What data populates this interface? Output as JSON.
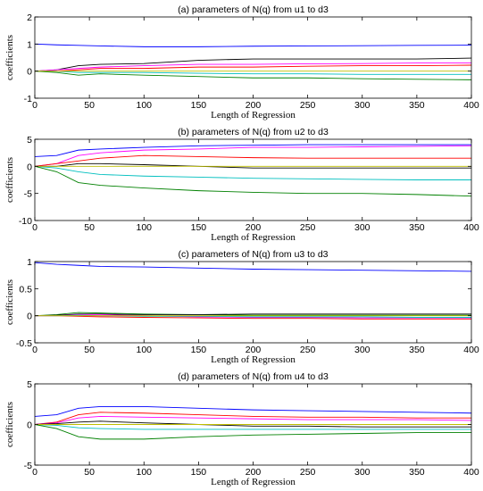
{
  "chart_data": [
    {
      "type": "line",
      "title": "(a) parameters of N(q) from u1 to d3",
      "xlabel": "Length of Regression",
      "ylabel": "coefficients",
      "xlim": [
        0,
        400
      ],
      "ylim": [
        -1,
        2
      ],
      "xticks": [
        0,
        50,
        100,
        150,
        200,
        250,
        300,
        350,
        400
      ],
      "yticks": [
        -1,
        0,
        1,
        2
      ],
      "grid": false,
      "series": [
        {
          "color": "#0000ff",
          "x": [
            0,
            20,
            40,
            60,
            100,
            150,
            200,
            250,
            300,
            350,
            400
          ],
          "values": [
            1.0,
            0.97,
            0.95,
            0.93,
            0.9,
            0.9,
            0.92,
            0.93,
            0.94,
            0.95,
            0.96
          ]
        },
        {
          "color": "#000000",
          "x": [
            0,
            20,
            40,
            60,
            100,
            150,
            200,
            250,
            300,
            350,
            400
          ],
          "values": [
            0.0,
            0.05,
            0.2,
            0.25,
            0.28,
            0.4,
            0.45,
            0.45,
            0.45,
            0.45,
            0.48
          ]
        },
        {
          "color": "#ff00ff",
          "x": [
            0,
            20,
            40,
            60,
            100,
            150,
            200,
            250,
            300,
            350,
            400
          ],
          "values": [
            0.0,
            0.05,
            0.1,
            0.15,
            0.2,
            0.25,
            0.25,
            0.27,
            0.28,
            0.3,
            0.3
          ]
        },
        {
          "color": "#ff0000",
          "x": [
            0,
            20,
            40,
            60,
            100,
            150,
            200,
            250,
            300,
            350,
            400
          ],
          "values": [
            0.0,
            0.0,
            0.05,
            0.1,
            0.1,
            0.15,
            0.15,
            0.18,
            0.2,
            0.2,
            0.22
          ]
        },
        {
          "color": "#00bfbf",
          "x": [
            0,
            20,
            40,
            60,
            100,
            150,
            200,
            250,
            300,
            350,
            400
          ],
          "values": [
            0.0,
            0.0,
            -0.05,
            -0.05,
            -0.05,
            -0.08,
            -0.1,
            -0.1,
            -0.12,
            -0.12,
            -0.12
          ]
        },
        {
          "color": "#008000",
          "x": [
            0,
            20,
            40,
            60,
            100,
            150,
            200,
            250,
            300,
            350,
            400
          ],
          "values": [
            0.0,
            -0.05,
            -0.15,
            -0.1,
            -0.15,
            -0.2,
            -0.25,
            -0.25,
            -0.28,
            -0.3,
            -0.32
          ]
        },
        {
          "color": "#bfbf00",
          "x": [
            0,
            400
          ],
          "values": [
            0.0,
            0.0
          ]
        }
      ]
    },
    {
      "type": "line",
      "title": "(b) parameters of N(q) from u2 to d3",
      "xlabel": "Length of Regression",
      "ylabel": "coefficients",
      "xlim": [
        0,
        400
      ],
      "ylim": [
        -10,
        5
      ],
      "xticks": [
        0,
        50,
        100,
        150,
        200,
        250,
        300,
        350,
        400
      ],
      "yticks": [
        -10,
        -5,
        0,
        5
      ],
      "grid": false,
      "series": [
        {
          "color": "#0000ff",
          "x": [
            0,
            20,
            40,
            60,
            100,
            150,
            200,
            250,
            300,
            350,
            400
          ],
          "values": [
            1.8,
            2.0,
            3.0,
            3.2,
            3.5,
            3.8,
            3.9,
            4.0,
            4.0,
            4.0,
            4.0
          ]
        },
        {
          "color": "#ff00ff",
          "x": [
            0,
            20,
            40,
            60,
            100,
            150,
            200,
            250,
            300,
            350,
            400
          ],
          "values": [
            0.0,
            0.5,
            2.0,
            2.5,
            3.0,
            3.2,
            3.5,
            3.5,
            3.6,
            3.7,
            3.8
          ]
        },
        {
          "color": "#ff0000",
          "x": [
            0,
            20,
            40,
            60,
            100,
            150,
            200,
            250,
            300,
            350,
            400
          ],
          "values": [
            0.0,
            0.5,
            1.0,
            1.5,
            2.0,
            1.8,
            1.6,
            1.5,
            1.5,
            1.5,
            1.5
          ]
        },
        {
          "color": "#000000",
          "x": [
            0,
            20,
            40,
            60,
            100,
            150,
            200,
            250,
            300,
            350,
            400
          ],
          "values": [
            0.0,
            0.0,
            0.5,
            0.5,
            0.3,
            0.0,
            -0.3,
            -0.3,
            -0.3,
            -0.3,
            -0.3
          ]
        },
        {
          "color": "#00bfbf",
          "x": [
            0,
            20,
            40,
            60,
            100,
            150,
            200,
            250,
            300,
            350,
            400
          ],
          "values": [
            0.0,
            -0.3,
            -1.0,
            -1.5,
            -1.8,
            -2.0,
            -2.2,
            -2.3,
            -2.4,
            -2.5,
            -2.5
          ]
        },
        {
          "color": "#008000",
          "x": [
            0,
            20,
            40,
            60,
            100,
            150,
            200,
            250,
            300,
            350,
            400
          ],
          "values": [
            0.0,
            -1.0,
            -3.0,
            -3.5,
            -4.0,
            -4.5,
            -4.8,
            -5.0,
            -5.0,
            -5.2,
            -5.5
          ]
        },
        {
          "color": "#bfbf00",
          "x": [
            0,
            400
          ],
          "values": [
            0.0,
            0.0
          ]
        }
      ]
    },
    {
      "type": "line",
      "title": "(c) parameters of N(q) from u3 to d3",
      "xlabel": "Length of Regression",
      "ylabel": "coefficients",
      "xlim": [
        0,
        400
      ],
      "ylim": [
        -0.5,
        1
      ],
      "xticks": [
        0,
        50,
        100,
        150,
        200,
        250,
        300,
        350,
        400
      ],
      "yticks": [
        -0.5,
        0,
        0.5,
        1
      ],
      "grid": false,
      "series": [
        {
          "color": "#0000ff",
          "x": [
            0,
            20,
            40,
            60,
            100,
            150,
            200,
            250,
            300,
            350,
            400
          ],
          "values": [
            0.98,
            0.95,
            0.93,
            0.91,
            0.9,
            0.88,
            0.86,
            0.85,
            0.84,
            0.83,
            0.82
          ]
        },
        {
          "color": "#008000",
          "x": [
            0,
            20,
            40,
            60,
            100,
            150,
            200,
            250,
            300,
            350,
            400
          ],
          "values": [
            0.0,
            0.02,
            0.06,
            0.05,
            0.03,
            0.02,
            0.01,
            0.01,
            0.01,
            0.01,
            0.01
          ]
        },
        {
          "color": "#000000",
          "x": [
            0,
            20,
            40,
            60,
            100,
            150,
            200,
            250,
            300,
            350,
            400
          ],
          "values": [
            0.0,
            0.01,
            0.03,
            0.03,
            0.02,
            0.02,
            0.03,
            0.03,
            0.03,
            0.03,
            0.03
          ]
        },
        {
          "color": "#ff00ff",
          "x": [
            0,
            20,
            40,
            60,
            100,
            150,
            200,
            250,
            300,
            350,
            400
          ],
          "values": [
            0.0,
            0.0,
            0.02,
            0.02,
            0.0,
            -0.02,
            -0.03,
            -0.03,
            -0.04,
            -0.04,
            -0.04
          ]
        },
        {
          "color": "#ff0000",
          "x": [
            0,
            20,
            40,
            60,
            100,
            150,
            200,
            250,
            300,
            350,
            400
          ],
          "values": [
            0.0,
            0.0,
            -0.01,
            -0.02,
            -0.03,
            -0.04,
            -0.05,
            -0.05,
            -0.06,
            -0.06,
            -0.06
          ]
        },
        {
          "color": "#00bfbf",
          "x": [
            0,
            20,
            40,
            60,
            100,
            150,
            200,
            250,
            300,
            350,
            400
          ],
          "values": [
            0.0,
            0.0,
            0.01,
            0.0,
            -0.01,
            -0.01,
            -0.02,
            -0.02,
            -0.02,
            -0.03,
            -0.03
          ]
        },
        {
          "color": "#bfbf00",
          "x": [
            0,
            400
          ],
          "values": [
            0.0,
            0.0
          ]
        }
      ]
    },
    {
      "type": "line",
      "title": "(d) parameters of N(q) from u4 to d3",
      "xlabel": "Length of Regression",
      "ylabel": "coefficients",
      "xlim": [
        0,
        400
      ],
      "ylim": [
        -5,
        5
      ],
      "xticks": [
        0,
        50,
        100,
        150,
        200,
        250,
        300,
        350,
        400
      ],
      "yticks": [
        -5,
        0,
        5
      ],
      "grid": false,
      "series": [
        {
          "color": "#0000ff",
          "x": [
            0,
            20,
            40,
            60,
            100,
            150,
            200,
            250,
            300,
            350,
            400
          ],
          "values": [
            1.0,
            1.2,
            2.0,
            2.2,
            2.2,
            2.0,
            1.8,
            1.7,
            1.6,
            1.5,
            1.4
          ]
        },
        {
          "color": "#ff0000",
          "x": [
            0,
            20,
            40,
            60,
            100,
            150,
            200,
            250,
            300,
            350,
            400
          ],
          "values": [
            0.0,
            0.3,
            1.2,
            1.5,
            1.4,
            1.2,
            1.0,
            0.9,
            0.9,
            0.8,
            0.8
          ]
        },
        {
          "color": "#ff00ff",
          "x": [
            0,
            20,
            40,
            60,
            100,
            150,
            200,
            250,
            300,
            350,
            400
          ],
          "values": [
            0.0,
            0.2,
            0.8,
            1.0,
            0.9,
            0.8,
            0.7,
            0.6,
            0.6,
            0.6,
            0.5
          ]
        },
        {
          "color": "#000000",
          "x": [
            0,
            20,
            40,
            60,
            100,
            150,
            200,
            250,
            300,
            350,
            400
          ],
          "values": [
            0.0,
            0.1,
            0.3,
            0.4,
            0.2,
            0.0,
            -0.2,
            -0.2,
            -0.3,
            -0.3,
            -0.3
          ]
        },
        {
          "color": "#00bfbf",
          "x": [
            0,
            20,
            40,
            60,
            100,
            150,
            200,
            250,
            300,
            350,
            400
          ],
          "values": [
            0.0,
            -0.1,
            -0.4,
            -0.5,
            -0.6,
            -0.6,
            -0.6,
            -0.6,
            -0.6,
            -0.6,
            -0.6
          ]
        },
        {
          "color": "#008000",
          "x": [
            0,
            20,
            40,
            60,
            100,
            150,
            200,
            250,
            300,
            350,
            400
          ],
          "values": [
            0.0,
            -0.5,
            -1.5,
            -1.8,
            -1.8,
            -1.5,
            -1.3,
            -1.2,
            -1.1,
            -1.0,
            -1.0
          ]
        },
        {
          "color": "#bfbf00",
          "x": [
            0,
            400
          ],
          "values": [
            0.0,
            0.0
          ]
        }
      ]
    }
  ]
}
